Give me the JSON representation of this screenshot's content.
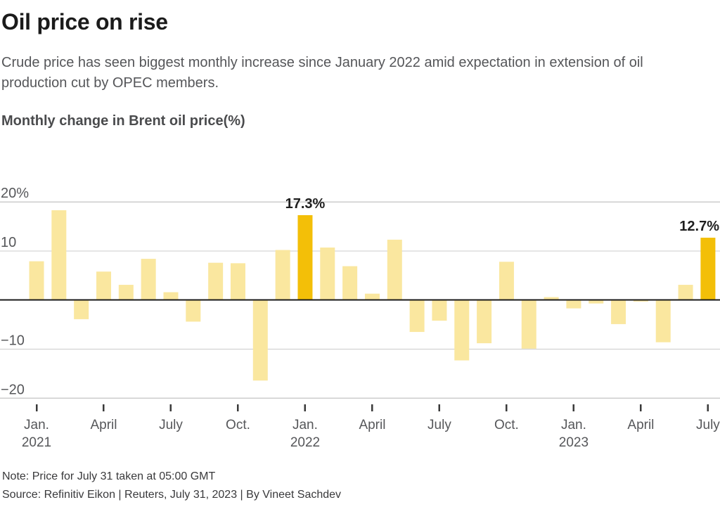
{
  "header": {
    "title": "Oil price on rise",
    "subtitle": "Crude price has seen biggest monthly increase since January 2022 amid expectation in extension of oil production cut by OPEC members."
  },
  "chart": {
    "heading": "Monthly change in Brent oil price(%)"
  },
  "chart_data": {
    "type": "bar",
    "title": "Monthly change in Brent oil price(%)",
    "categories": [
      "Jan. 2021",
      "Feb. 2021",
      "Mar. 2021",
      "Apr. 2021",
      "May 2021",
      "Jun. 2021",
      "Jul. 2021",
      "Aug. 2021",
      "Sep. 2021",
      "Oct. 2021",
      "Nov. 2021",
      "Dec. 2021",
      "Jan. 2022",
      "Feb. 2022",
      "Mar. 2022",
      "Apr. 2022",
      "May 2022",
      "Jun. 2022",
      "Jul. 2022",
      "Aug. 2022",
      "Sep. 2022",
      "Oct. 2022",
      "Nov. 2022",
      "Dec. 2022",
      "Jan. 2023",
      "Feb. 2023",
      "Mar. 2023",
      "Apr. 2023",
      "May 2023",
      "Jun. 2023",
      "Jul. 2023"
    ],
    "values": [
      7.9,
      18.3,
      -3.9,
      5.8,
      3.1,
      8.4,
      1.6,
      -4.4,
      7.6,
      7.5,
      -16.4,
      10.2,
      17.3,
      10.7,
      6.9,
      1.3,
      12.3,
      -6.5,
      -4.2,
      -12.3,
      -8.8,
      7.8,
      -9.9,
      0.6,
      -1.7,
      -0.7,
      -4.9,
      -0.3,
      -8.6,
      3.1,
      12.7
    ],
    "highlight_indices": [
      12,
      30
    ],
    "annotations": [
      {
        "index": 12,
        "label": "17.3%"
      },
      {
        "index": 30,
        "label": "12.7%"
      }
    ],
    "ylim": [
      -22,
      21.5
    ],
    "yticks": [
      {
        "value": 20,
        "label": "20%"
      },
      {
        "value": 10,
        "label": "10"
      },
      {
        "value": -10,
        "label": "−10"
      },
      {
        "value": -20,
        "label": "−20"
      }
    ],
    "xticks": [
      {
        "index": 0,
        "lines": [
          "Jan.",
          "2021"
        ]
      },
      {
        "index": 3,
        "lines": [
          "April"
        ]
      },
      {
        "index": 6,
        "lines": [
          "July"
        ]
      },
      {
        "index": 9,
        "lines": [
          "Oct."
        ]
      },
      {
        "index": 12,
        "lines": [
          "Jan.",
          "2022"
        ]
      },
      {
        "index": 15,
        "lines": [
          "April"
        ]
      },
      {
        "index": 18,
        "lines": [
          "July"
        ]
      },
      {
        "index": 21,
        "lines": [
          "Oct."
        ]
      },
      {
        "index": 24,
        "lines": [
          "Jan.",
          "2023"
        ]
      },
      {
        "index": 27,
        "lines": [
          "April"
        ]
      },
      {
        "index": 30,
        "lines": [
          "July"
        ]
      }
    ],
    "legend": null,
    "grid": true,
    "colors": {
      "bar": "#FAE79F",
      "highlight": "#F3BF08",
      "gridline": "#CCCCCC",
      "zero_line": "#1A1A1A",
      "axis_text": "#56575A",
      "tick_mark": "#3A3A3A",
      "annotation": "#1F1F1F"
    }
  },
  "footer": {
    "note": "Note: Price for July 31 taken at 05:00 GMT",
    "source": "Source: Refinitiv Eikon | Reuters, July 31, 2023 | By Vineet Sachdev"
  }
}
